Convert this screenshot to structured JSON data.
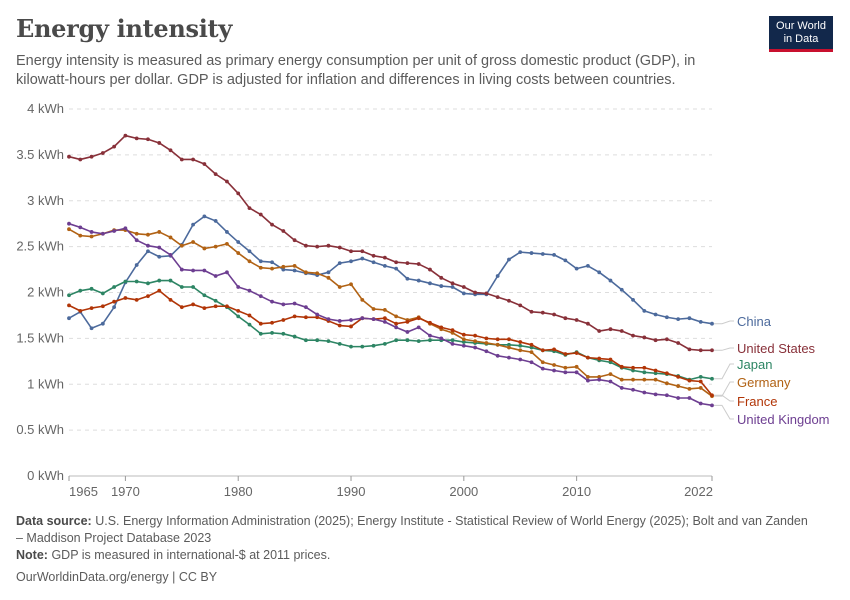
{
  "header": {
    "title": "Energy intensity",
    "subtitle": "Energy intensity is measured as primary energy consumption per unit of gross domestic product (GDP), in kilowatt-hours per dollar. GDP is adjusted for inflation and differences in living costs between countries.",
    "logo_line1": "Our World",
    "logo_line2": "in Data"
  },
  "footer": {
    "source_label": "Data source:",
    "source_text": "U.S. Energy Information Administration (2025); Energy Institute - Statistical Review of World Energy (2025); Bolt and van Zanden – Maddison Project Database 2023",
    "note_label": "Note:",
    "note_text": "GDP is measured in international-$ at 2011 prices.",
    "link_text": "OurWorldinData.org/energy",
    "license": "| CC BY"
  },
  "colors": {
    "China": "#4c6a9c",
    "United States": "#883039",
    "Japan": "#2d8564",
    "Germany": "#b16214",
    "France": "#b13507",
    "United Kingdom": "#6d3e91",
    "grid": "#dddddd",
    "axis": "#999999"
  },
  "chart_data": {
    "type": "line",
    "title": "Energy intensity",
    "xlim": [
      1965,
      2022
    ],
    "ylim": [
      0,
      4
    ],
    "x_ticks": [
      1965,
      1970,
      1980,
      1990,
      2000,
      2010,
      2022
    ],
    "y_ticks": [
      0,
      0.5,
      1,
      1.5,
      2,
      2.5,
      3,
      3.5,
      4
    ],
    "y_tick_labels": [
      "0 kWh",
      "0.5 kWh",
      "1 kWh",
      "1.5 kWh",
      "2 kWh",
      "2.5 kWh",
      "3 kWh",
      "3.5 kWh",
      "4 kWh"
    ],
    "grid": "horizontal dashed",
    "legend": "right end labels",
    "x": [
      1965,
      1966,
      1967,
      1968,
      1969,
      1970,
      1971,
      1972,
      1973,
      1974,
      1975,
      1976,
      1977,
      1978,
      1979,
      1980,
      1981,
      1982,
      1983,
      1984,
      1985,
      1986,
      1987,
      1988,
      1989,
      1990,
      1991,
      1992,
      1993,
      1994,
      1995,
      1996,
      1997,
      1998,
      1999,
      2000,
      2001,
      2002,
      2003,
      2004,
      2005,
      2006,
      2007,
      2008,
      2009,
      2010,
      2011,
      2012,
      2013,
      2014,
      2015,
      2016,
      2017,
      2018,
      2019,
      2020,
      2021,
      2022
    ],
    "series": [
      {
        "name": "China",
        "values": [
          1.72,
          1.79,
          1.61,
          1.66,
          1.84,
          2.11,
          2.3,
          2.45,
          2.39,
          2.4,
          2.52,
          2.74,
          2.83,
          2.78,
          2.66,
          2.55,
          2.45,
          2.34,
          2.33,
          2.25,
          2.24,
          2.21,
          2.19,
          2.22,
          2.32,
          2.34,
          2.37,
          2.33,
          2.29,
          2.26,
          2.15,
          2.13,
          2.1,
          2.07,
          2.06,
          1.99,
          1.98,
          1.98,
          2.18,
          2.36,
          2.44,
          2.43,
          2.42,
          2.41,
          2.35,
          2.26,
          2.29,
          2.22,
          2.13,
          2.03,
          1.92,
          1.8,
          1.76,
          1.73,
          1.71,
          1.72,
          1.68,
          1.66
        ]
      },
      {
        "name": "United States",
        "values": [
          3.48,
          3.45,
          3.48,
          3.52,
          3.59,
          3.71,
          3.68,
          3.67,
          3.63,
          3.55,
          3.45,
          3.45,
          3.4,
          3.29,
          3.21,
          3.08,
          2.92,
          2.85,
          2.74,
          2.67,
          2.57,
          2.51,
          2.5,
          2.51,
          2.49,
          2.45,
          2.45,
          2.4,
          2.38,
          2.33,
          2.32,
          2.31,
          2.25,
          2.16,
          2.1,
          2.06,
          2.0,
          1.99,
          1.95,
          1.91,
          1.86,
          1.79,
          1.78,
          1.76,
          1.72,
          1.7,
          1.66,
          1.58,
          1.6,
          1.58,
          1.53,
          1.51,
          1.48,
          1.49,
          1.45,
          1.38,
          1.37,
          1.37
        ]
      },
      {
        "name": "Japan",
        "values": [
          1.97,
          2.02,
          2.04,
          1.99,
          2.06,
          2.12,
          2.12,
          2.1,
          2.13,
          2.13,
          2.06,
          2.06,
          1.97,
          1.91,
          1.84,
          1.74,
          1.65,
          1.55,
          1.56,
          1.55,
          1.52,
          1.48,
          1.48,
          1.47,
          1.44,
          1.41,
          1.41,
          1.42,
          1.44,
          1.48,
          1.48,
          1.47,
          1.48,
          1.48,
          1.48,
          1.46,
          1.45,
          1.44,
          1.43,
          1.43,
          1.42,
          1.4,
          1.37,
          1.36,
          1.32,
          1.35,
          1.29,
          1.26,
          1.24,
          1.18,
          1.15,
          1.13,
          1.12,
          1.11,
          1.09,
          1.05,
          1.08,
          1.06
        ]
      },
      {
        "name": "Germany",
        "values": [
          2.69,
          2.62,
          2.61,
          2.64,
          2.68,
          2.68,
          2.64,
          2.63,
          2.66,
          2.6,
          2.51,
          2.55,
          2.48,
          2.5,
          2.53,
          2.43,
          2.34,
          2.27,
          2.26,
          2.28,
          2.29,
          2.22,
          2.21,
          2.16,
          2.06,
          2.09,
          1.92,
          1.82,
          1.81,
          1.74,
          1.7,
          1.73,
          1.66,
          1.6,
          1.56,
          1.49,
          1.47,
          1.45,
          1.43,
          1.4,
          1.37,
          1.35,
          1.24,
          1.21,
          1.18,
          1.19,
          1.08,
          1.08,
          1.11,
          1.05,
          1.05,
          1.05,
          1.05,
          1.01,
          0.98,
          0.95,
          0.96,
          0.87
        ]
      },
      {
        "name": "France",
        "values": [
          1.86,
          1.8,
          1.83,
          1.85,
          1.9,
          1.94,
          1.92,
          1.96,
          2.02,
          1.92,
          1.84,
          1.87,
          1.83,
          1.85,
          1.85,
          1.8,
          1.75,
          1.66,
          1.67,
          1.7,
          1.74,
          1.73,
          1.73,
          1.69,
          1.64,
          1.63,
          1.72,
          1.71,
          1.72,
          1.66,
          1.68,
          1.72,
          1.67,
          1.62,
          1.59,
          1.54,
          1.53,
          1.5,
          1.49,
          1.49,
          1.46,
          1.43,
          1.37,
          1.38,
          1.33,
          1.34,
          1.29,
          1.28,
          1.27,
          1.19,
          1.18,
          1.18,
          1.15,
          1.12,
          1.08,
          1.04,
          1.03,
          0.88
        ]
      },
      {
        "name": "United Kingdom",
        "values": [
          2.75,
          2.71,
          2.66,
          2.64,
          2.67,
          2.7,
          2.57,
          2.51,
          2.49,
          2.41,
          2.25,
          2.24,
          2.24,
          2.18,
          2.22,
          2.06,
          2.02,
          1.96,
          1.9,
          1.87,
          1.88,
          1.84,
          1.76,
          1.71,
          1.69,
          1.7,
          1.72,
          1.71,
          1.68,
          1.62,
          1.57,
          1.62,
          1.53,
          1.5,
          1.44,
          1.42,
          1.4,
          1.36,
          1.31,
          1.29,
          1.27,
          1.24,
          1.17,
          1.15,
          1.13,
          1.13,
          1.04,
          1.05,
          1.03,
          0.96,
          0.94,
          0.91,
          0.89,
          0.88,
          0.85,
          0.85,
          0.79,
          0.77
        ]
      }
    ]
  }
}
